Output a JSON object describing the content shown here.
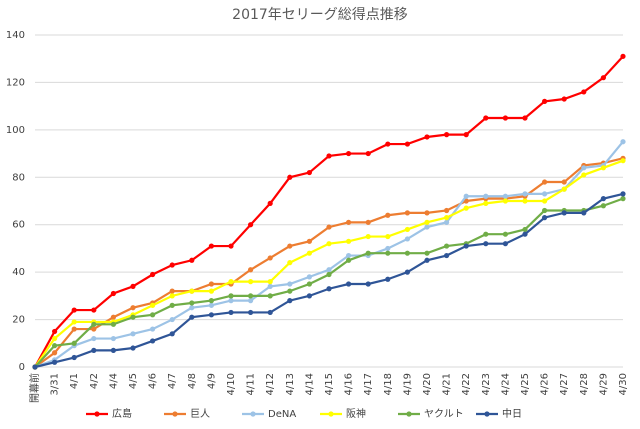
{
  "chart_data": {
    "type": "line",
    "title": "2017年セリーグ総得点推移",
    "categories": [
      "開幕前",
      "3/31",
      "4/1",
      "4/2",
      "4/4",
      "4/5",
      "4/6",
      "4/7",
      "4/8",
      "4/9",
      "4/10",
      "4/11",
      "4/12",
      "4/13",
      "4/14",
      "4/15",
      "4/16",
      "4/17",
      "4/18",
      "4/19",
      "4/20",
      "4/21",
      "4/22",
      "4/23",
      "4/24",
      "4/25",
      "4/26",
      "4/27",
      "4/28",
      "4/29",
      "4/30"
    ],
    "series": [
      {
        "name": "広島",
        "color": "#ff0000",
        "values": [
          0,
          15,
          24,
          24,
          31,
          34,
          39,
          43,
          45,
          51,
          51,
          60,
          69,
          80,
          82,
          89,
          90,
          90,
          94,
          94,
          97,
          98,
          98,
          105,
          105,
          105,
          112,
          113,
          116,
          122,
          131
        ]
      },
      {
        "name": "巨人",
        "color": "#ed7d31",
        "values": [
          0,
          6,
          16,
          16,
          21,
          25,
          27,
          32,
          32,
          35,
          35,
          41,
          46,
          51,
          53,
          59,
          61,
          61,
          64,
          65,
          65,
          66,
          70,
          71,
          71,
          72,
          78,
          78,
          85,
          86,
          88
        ]
      },
      {
        "name": "DeNA",
        "color": "#9dc3e6",
        "values": [
          0,
          3,
          9,
          12,
          12,
          14,
          16,
          20,
          25,
          26,
          28,
          28,
          34,
          35,
          38,
          41,
          47,
          47,
          50,
          54,
          59,
          61,
          72,
          72,
          72,
          73,
          73,
          75,
          84,
          85,
          95
        ]
      },
      {
        "name": "阪神",
        "color": "#ffff00",
        "values": [
          0,
          12,
          19,
          19,
          19,
          22,
          26,
          30,
          32,
          32,
          36,
          36,
          36,
          44,
          48,
          52,
          53,
          55,
          55,
          58,
          61,
          63,
          67,
          69,
          70,
          70,
          70,
          75,
          81,
          84,
          87
        ]
      },
      {
        "name": "ヤクルト",
        "color": "#70ad47",
        "values": [
          0,
          9,
          10,
          18,
          18,
          21,
          22,
          26,
          27,
          28,
          30,
          30,
          30,
          32,
          35,
          39,
          45,
          48,
          48,
          48,
          48,
          51,
          52,
          56,
          56,
          58,
          66,
          66,
          66,
          68,
          71
        ]
      },
      {
        "name": "中日",
        "color": "#2f5597",
        "values": [
          0,
          2,
          4,
          7,
          7,
          8,
          11,
          14,
          21,
          22,
          23,
          23,
          23,
          28,
          30,
          33,
          35,
          35,
          37,
          40,
          45,
          47,
          51,
          52,
          52,
          56,
          63,
          65,
          65,
          71,
          73
        ]
      }
    ],
    "ylim": [
      0,
      140
    ],
    "yticks": [
      0,
      20,
      40,
      60,
      80,
      100,
      120,
      140
    ],
    "grid": true,
    "legend": "bottom"
  }
}
